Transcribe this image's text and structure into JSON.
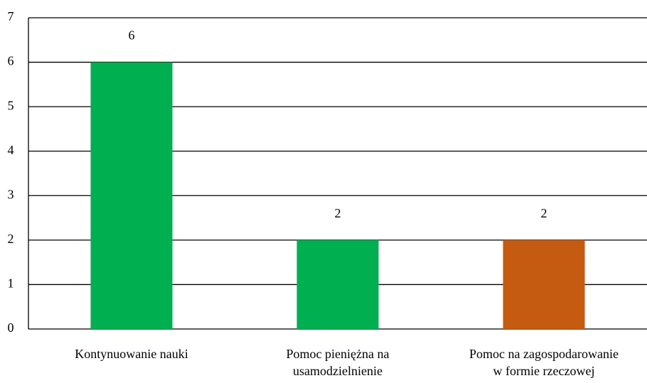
{
  "chart_data": {
    "type": "bar",
    "categories": [
      "Kontynuowanie nauki",
      "Pomoc pieniężna na usamodzielnienie",
      "Pomoc na zagospodarowanie w formie rzeczowej"
    ],
    "values": [
      6,
      2,
      2
    ],
    "colors": [
      "#00b050",
      "#00b050",
      "#c55a11"
    ],
    "ylim": [
      0,
      7
    ],
    "yticks": [
      0,
      1,
      2,
      3,
      4,
      5,
      6,
      7
    ],
    "grid": true
  }
}
